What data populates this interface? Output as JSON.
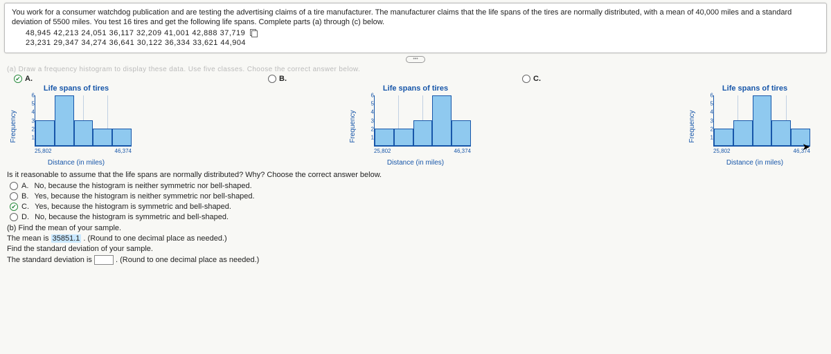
{
  "problem": {
    "intro": "You work for a consumer watchdog publication and are testing the advertising claims of a tire manufacturer. The manufacturer claims that the life spans of the tires are normally distributed, with a mean of 40,000 miles and a standard deviation of 5500 miles. You test 16 tires and get the following life spans. Complete parts (a) through (c) below.",
    "data_row1": "48,945  42,213  24,051  36,117  32,209  41,001  42,888  37,719",
    "data_row2": "23,231  29,347  34,274  36,641  30,122  36,334  33,621  44,904"
  },
  "partA_blur": "(a) Draw a frequency histogram to display these data. Use five classes. Choose the correct answer below.",
  "options": {
    "a": "A.",
    "b": "B.",
    "c": "C."
  },
  "chart": {
    "title": "Life spans of tires",
    "ylabel": "Frequency",
    "xlabel": "Distance (in miles)",
    "ymax": 6,
    "yticks": [
      1,
      2,
      3,
      4,
      5,
      6
    ],
    "xtick_min": "25,802",
    "xtick_max": "46,374",
    "axis_color": "#1756a9",
    "bar_fill": "#8fc9ef",
    "variants": {
      "A": {
        "bars": [
          3,
          6,
          3,
          2,
          2
        ]
      },
      "B": {
        "bars": [
          2,
          2,
          3,
          6,
          3
        ]
      },
      "C": {
        "bars": [
          2,
          3,
          6,
          3,
          2
        ]
      }
    }
  },
  "q1": "Is it reasonable to assume that the life spans are normally distributed? Why? Choose the correct answer below.",
  "answers": {
    "a": "No, because the histogram is neither symmetric nor bell-shaped.",
    "b": "Yes, because the histogram is neither symmetric nor bell-shaped.",
    "c": "Yes, because the histogram is symmetric and bell-shaped.",
    "d": "No, because the histogram is symmetric and bell-shaped."
  },
  "partB": {
    "line1": "(b) Find the mean of your sample.",
    "line2_pre": "The mean is ",
    "mean_value": "35851.1",
    "line2_post": ". (Round to one decimal place as needed.)",
    "line3": "Find the standard deviation of your sample.",
    "line4_pre": "The standard deviation is ",
    "line4_post": ". (Round to one decimal place as needed.)"
  }
}
